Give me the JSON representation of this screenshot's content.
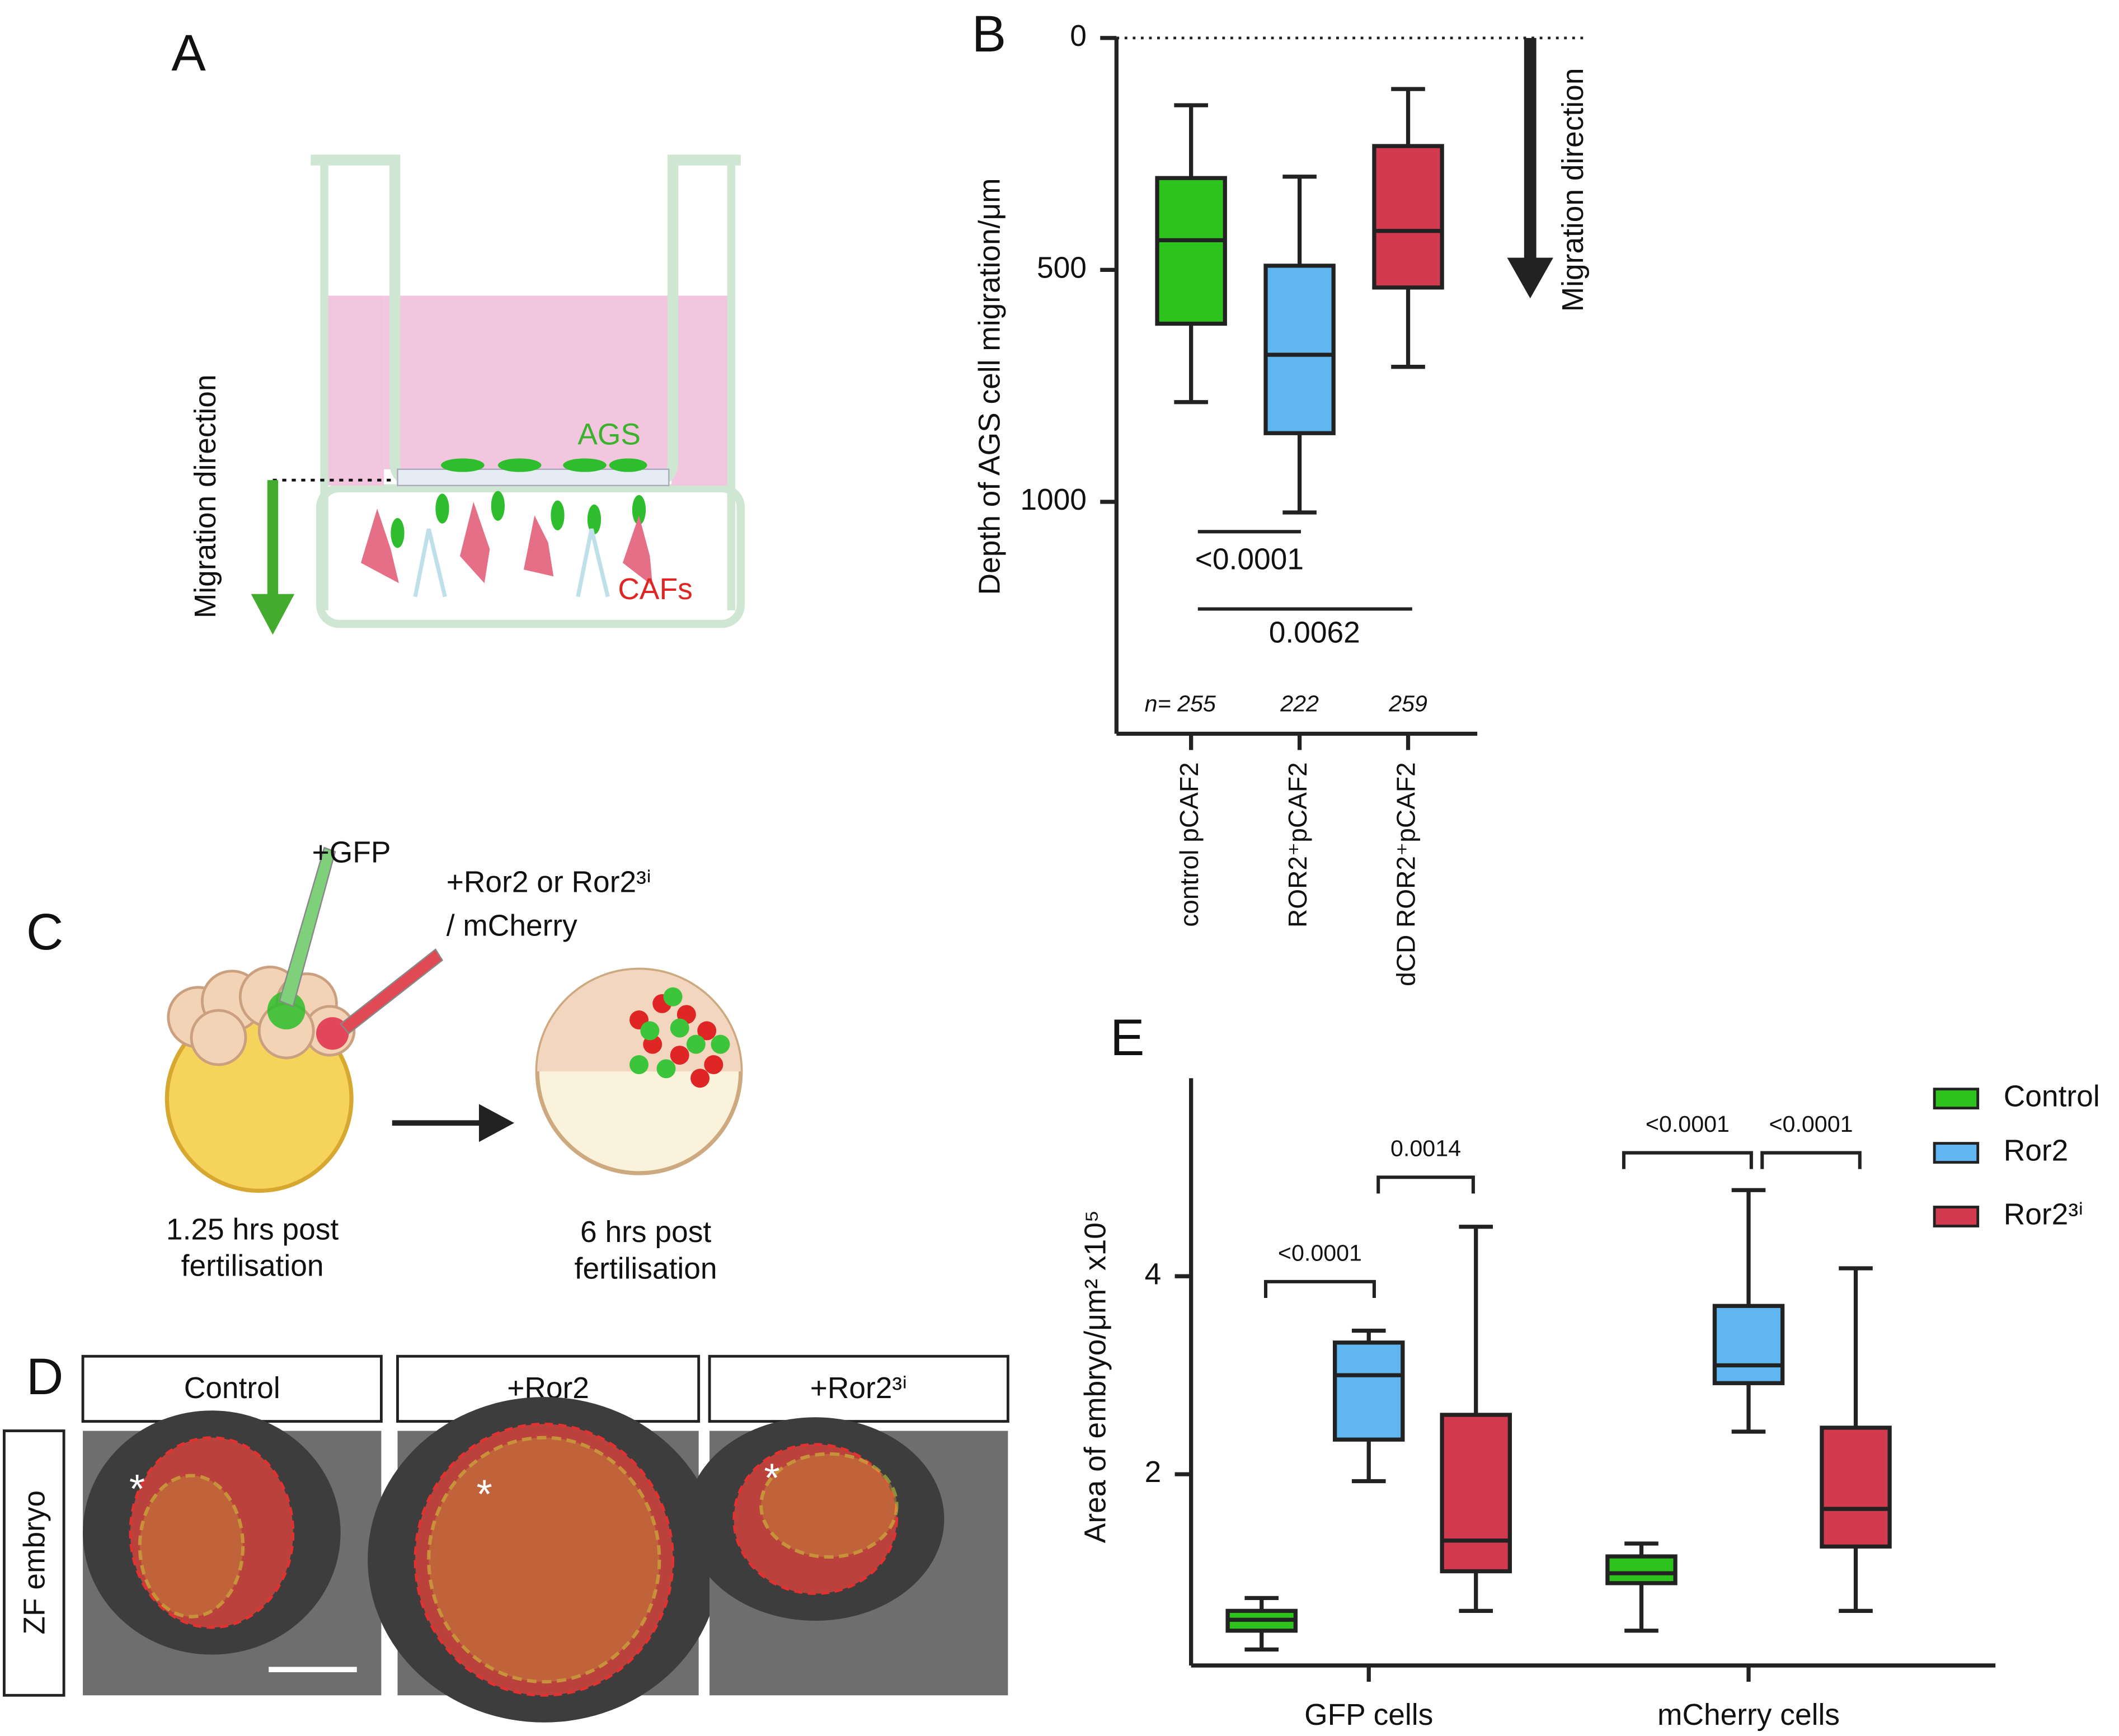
{
  "figure": {
    "panel_a": {
      "letter": "A",
      "cells_top": "AGS",
      "cells_bottom": "CAFs",
      "arrow_label": "Migration direction"
    },
    "panel_c": {
      "letter": "C",
      "injection_1": "+GFP",
      "injection_2": "+Ror2 or Ror2³ⁱ",
      "injection_2b": "/ mCherry",
      "stage_1": [
        "1.25 hrs post",
        "fertilisation"
      ],
      "stage_2": [
        "6 hrs post",
        "fertilisation"
      ]
    },
    "panel_d": {
      "letter": "D",
      "columns": [
        "Control",
        "+Ror2",
        "+Ror2³ⁱ"
      ],
      "row": "ZF embryo",
      "marker": "*"
    }
  },
  "chart_data": [
    {
      "type": "box",
      "panel": "B",
      "y_label": "Depth of AGS cell migration/μm",
      "categories": [
        "control pCAF2",
        "ROR2⁺pCAF2",
        "dCD ROR2⁺pCAF2"
      ],
      "colors": [
        "#2ec31c",
        "#5fb6f0",
        "#d43a4f"
      ],
      "min": [
        145,
        299,
        110
      ],
      "q1": [
        302,
        491,
        233
      ],
      "median": [
        436,
        683,
        416
      ],
      "q3": [
        616,
        852,
        538
      ],
      "max": [
        785,
        1023,
        709
      ],
      "n_labels": [
        "n= 255",
        "222",
        "259"
      ],
      "comparisons": [
        "<0.0001",
        "0.0062"
      ],
      "annotation": "Migration direction",
      "ylim": [
        0,
        1500
      ],
      "y_inverted": true,
      "yticks": [
        0,
        500,
        1000
      ]
    },
    {
      "type": "box",
      "panel": "E",
      "y_label": "Area of embryo/μm² x10⁵",
      "categories": [
        "GFP cells",
        "mCherry cells"
      ],
      "series": [
        {
          "name": "Control",
          "color": "#2ec31c",
          "min": [
            0.23,
            0.42
          ],
          "q1": [
            0.42,
            0.9
          ],
          "median": [
            0.53,
            1.0
          ],
          "q3": [
            0.62,
            1.17
          ],
          "max": [
            0.75,
            1.3
          ]
        },
        {
          "name": "Ror2",
          "color": "#5fb6f0",
          "min": [
            1.93,
            2.43
          ],
          "q1": [
            2.35,
            2.92
          ],
          "median": [
            3.0,
            3.1
          ],
          "q3": [
            3.33,
            3.7
          ],
          "max": [
            3.45,
            4.87
          ]
        },
        {
          "name": "Ror2³ⁱ",
          "color": "#d43a4f",
          "min": [
            0.62,
            0.62
          ],
          "q1": [
            1.02,
            1.27
          ],
          "median": [
            1.33,
            1.65
          ],
          "q3": [
            2.6,
            2.47
          ],
          "max": [
            4.5,
            4.08
          ]
        }
      ],
      "comparisons": [
        "<0.0001",
        "0.0014",
        "<0.0001",
        "<0.0001"
      ],
      "ylim": [
        0,
        6
      ],
      "yticks": [
        2,
        4
      ]
    }
  ]
}
